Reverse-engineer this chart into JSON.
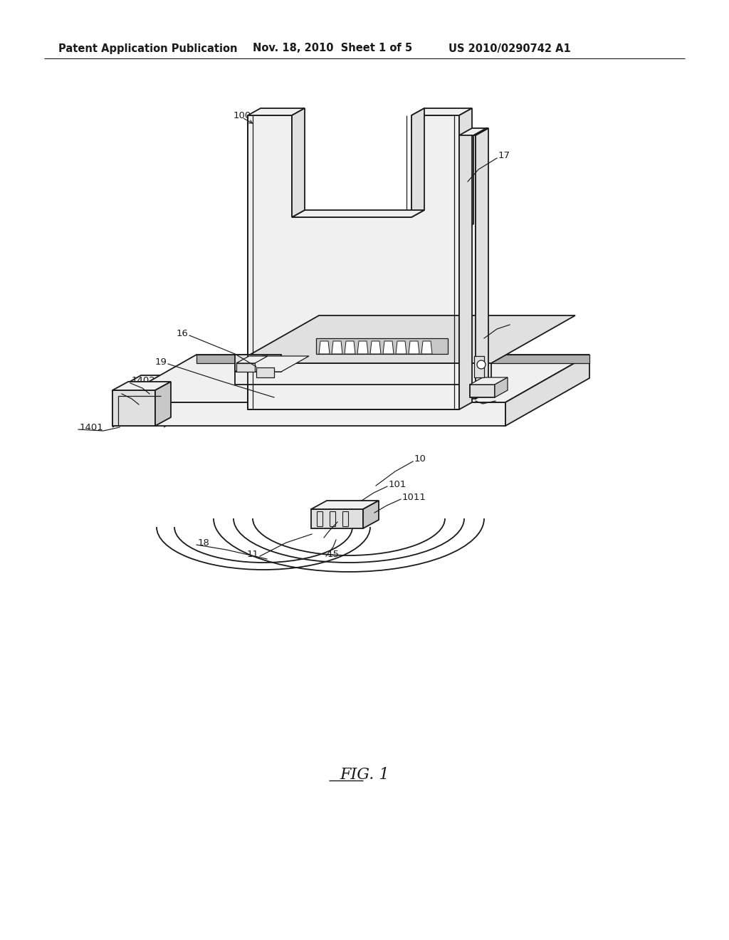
{
  "bg_color": "#ffffff",
  "line_color": "#1a1a1a",
  "header_left": "Patent Application Publication",
  "header_mid": "Nov. 18, 2010  Sheet 1 of 5",
  "header_right": "US 2010/0290742 A1",
  "figure_label": "FIG. 1"
}
